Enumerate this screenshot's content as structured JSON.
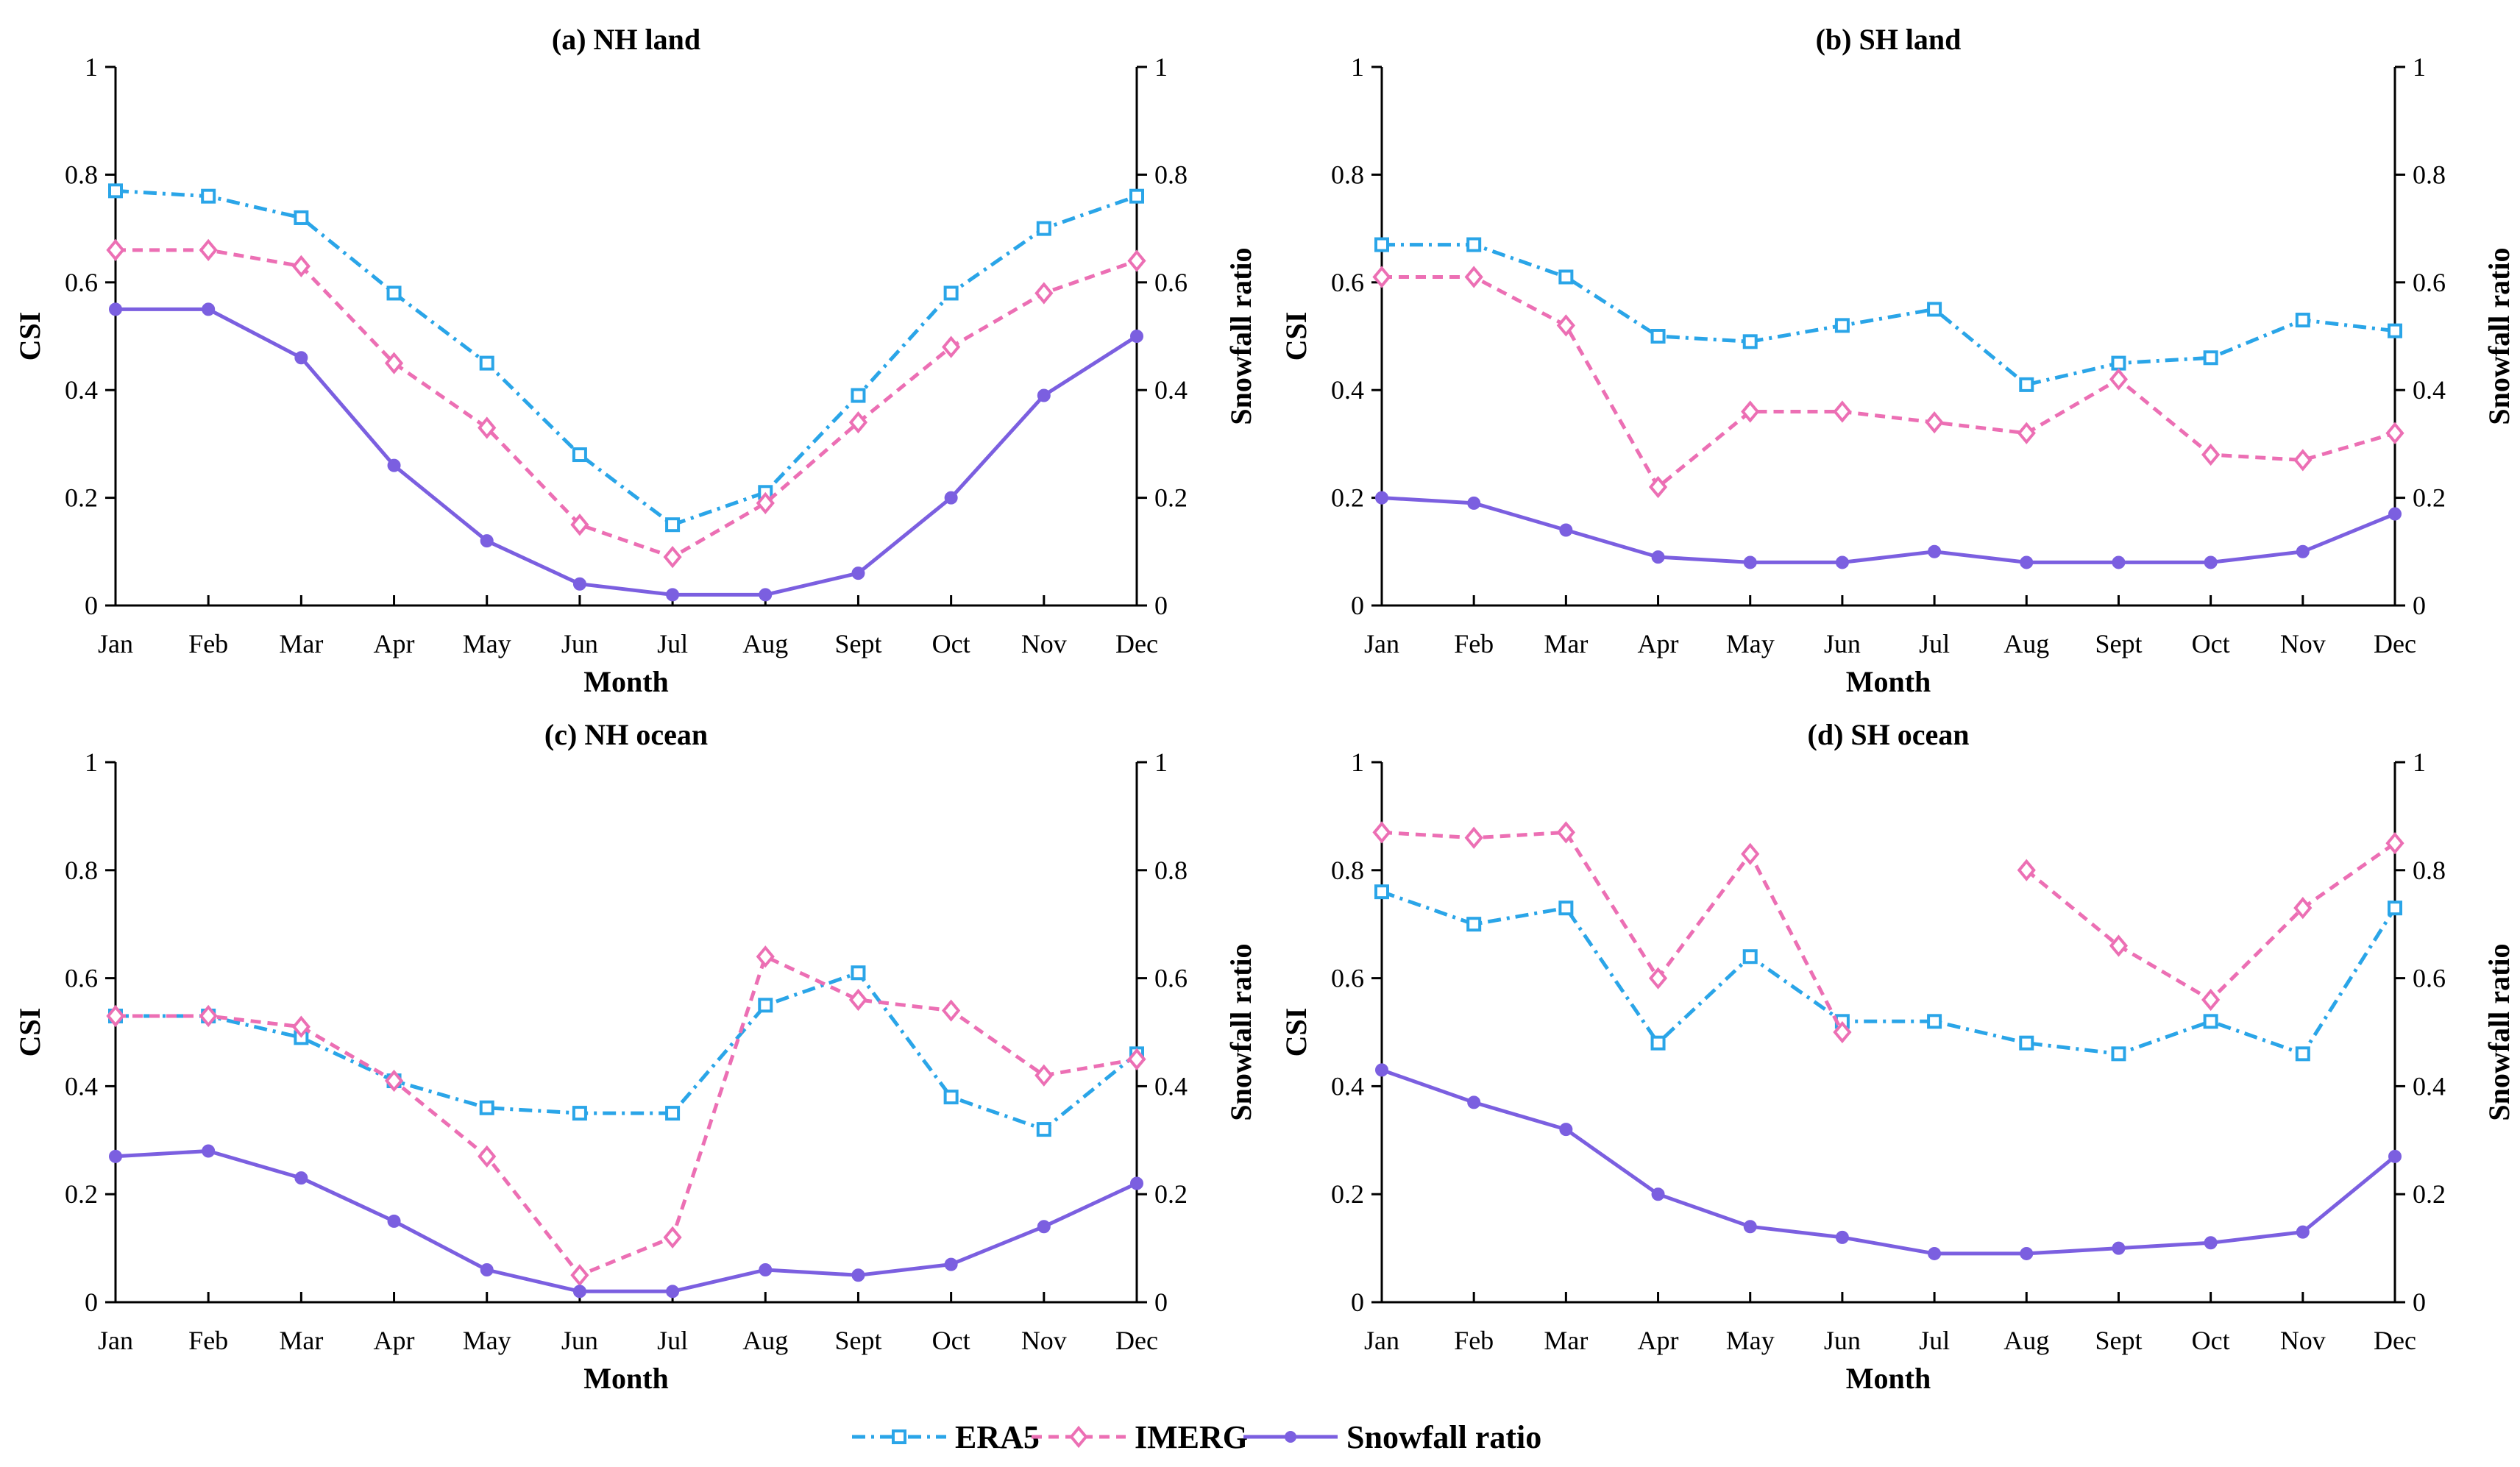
{
  "colors": {
    "era5": "#2aa5e8",
    "imerg": "#ec6fb4",
    "snowfall": "#7b5fe0"
  },
  "legend": {
    "era5": "ERA5",
    "imerg": "IMERG",
    "snowfall": "Snowfall ratio"
  },
  "chart_data": [
    {
      "type": "line",
      "title": "(a) NH land",
      "xlabel": "Month",
      "ylabel": "CSI",
      "y2label": "Snowfall ratio",
      "categories": [
        "Jan",
        "Feb",
        "Mar",
        "Apr",
        "May",
        "Jun",
        "Jul",
        "Aug",
        "Sept",
        "Oct",
        "Nov",
        "Dec"
      ],
      "ylim": [
        0,
        1
      ],
      "y2lim": [
        0,
        1
      ],
      "yticks": [
        "0",
        "0.2",
        "0.4",
        "0.6",
        "0.8",
        "1"
      ],
      "y2ticks": [
        "0",
        "0.2",
        "0.4",
        "0.6",
        "0.8",
        "1"
      ],
      "series": [
        {
          "name": "ERA5",
          "key": "era5",
          "axis": "left",
          "values": [
            0.77,
            0.76,
            0.72,
            0.58,
            0.45,
            0.28,
            0.15,
            0.21,
            0.39,
            0.58,
            0.7,
            0.76
          ]
        },
        {
          "name": "IMERG",
          "key": "imerg",
          "axis": "left",
          "values": [
            0.66,
            0.66,
            0.63,
            0.45,
            0.33,
            0.15,
            0.09,
            0.19,
            0.34,
            0.48,
            0.58,
            0.64
          ]
        },
        {
          "name": "Snowfall ratio",
          "key": "snowfall",
          "axis": "right",
          "values": [
            0.55,
            0.55,
            0.46,
            0.26,
            0.12,
            0.04,
            0.02,
            0.02,
            0.06,
            0.2,
            0.39,
            0.5
          ]
        }
      ]
    },
    {
      "type": "line",
      "title": "(b) SH land",
      "xlabel": "Month",
      "ylabel": "CSI",
      "y2label": "Snowfall ratio",
      "categories": [
        "Jan",
        "Feb",
        "Mar",
        "Apr",
        "May",
        "Jun",
        "Jul",
        "Aug",
        "Sept",
        "Oct",
        "Nov",
        "Dec"
      ],
      "ylim": [
        0,
        1
      ],
      "y2lim": [
        0,
        1
      ],
      "yticks": [
        "0",
        "0.2",
        "0.4",
        "0.6",
        "0.8",
        "1"
      ],
      "y2ticks": [
        "0",
        "0.2",
        "0.4",
        "0.6",
        "0.8",
        "1"
      ],
      "series": [
        {
          "name": "ERA5",
          "key": "era5",
          "axis": "left",
          "values": [
            0.67,
            0.67,
            0.61,
            0.5,
            0.49,
            0.52,
            0.55,
            0.41,
            0.45,
            0.46,
            0.53,
            0.51
          ]
        },
        {
          "name": "IMERG",
          "key": "imerg",
          "axis": "left",
          "values": [
            0.61,
            0.61,
            0.52,
            0.22,
            0.36,
            0.36,
            0.34,
            0.32,
            0.42,
            0.28,
            0.27,
            0.32
          ]
        },
        {
          "name": "Snowfall ratio",
          "key": "snowfall",
          "axis": "right",
          "values": [
            0.2,
            0.19,
            0.14,
            0.09,
            0.08,
            0.08,
            0.1,
            0.08,
            0.08,
            0.08,
            0.1,
            0.17
          ]
        }
      ]
    },
    {
      "type": "line",
      "title": "(c) NH ocean",
      "xlabel": "Month",
      "ylabel": "CSI",
      "y2label": "Snowfall ratio",
      "categories": [
        "Jan",
        "Feb",
        "Mar",
        "Apr",
        "May",
        "Jun",
        "Jul",
        "Aug",
        "Sept",
        "Oct",
        "Nov",
        "Dec"
      ],
      "ylim": [
        0,
        1
      ],
      "y2lim": [
        0,
        1
      ],
      "yticks": [
        "0",
        "0.2",
        "0.4",
        "0.6",
        "0.8",
        "1"
      ],
      "y2ticks": [
        "0",
        "0.2",
        "0.4",
        "0.6",
        "0.8",
        "1"
      ],
      "series": [
        {
          "name": "ERA5",
          "key": "era5",
          "axis": "left",
          "values": [
            0.53,
            0.53,
            0.49,
            0.41,
            0.36,
            0.35,
            0.35,
            0.55,
            0.61,
            0.38,
            0.32,
            0.46
          ]
        },
        {
          "name": "IMERG",
          "key": "imerg",
          "axis": "left",
          "values": [
            0.53,
            0.53,
            0.51,
            0.41,
            0.27,
            0.05,
            0.12,
            0.64,
            0.56,
            0.54,
            0.42,
            0.45
          ]
        },
        {
          "name": "Snowfall ratio",
          "key": "snowfall",
          "axis": "right",
          "values": [
            0.27,
            0.28,
            0.23,
            0.15,
            0.06,
            0.02,
            0.02,
            0.06,
            0.05,
            0.07,
            0.14,
            0.22
          ]
        }
      ]
    },
    {
      "type": "line",
      "title": "(d) SH ocean",
      "xlabel": "Month",
      "ylabel": "CSI",
      "y2label": "Snowfall ratio",
      "categories": [
        "Jan",
        "Feb",
        "Mar",
        "Apr",
        "May",
        "Jun",
        "Jul",
        "Aug",
        "Sept",
        "Oct",
        "Nov",
        "Dec"
      ],
      "ylim": [
        0,
        1
      ],
      "y2lim": [
        0,
        1
      ],
      "yticks": [
        "0",
        "0.2",
        "0.4",
        "0.6",
        "0.8",
        "1"
      ],
      "y2ticks": [
        "0",
        "0.2",
        "0.4",
        "0.6",
        "0.8",
        "1"
      ],
      "series": [
        {
          "name": "ERA5",
          "key": "era5",
          "axis": "left",
          "values": [
            0.76,
            0.7,
            0.73,
            0.48,
            0.64,
            0.52,
            0.52,
            0.48,
            0.46,
            0.52,
            0.46,
            0.73
          ]
        },
        {
          "name": "IMERG",
          "key": "imerg",
          "axis": "left",
          "values": [
            0.87,
            0.86,
            0.87,
            0.6,
            0.83,
            0.5,
            null,
            0.8,
            0.66,
            0.56,
            0.73,
            0.85
          ]
        },
        {
          "name": "Snowfall ratio",
          "key": "snowfall",
          "axis": "right",
          "values": [
            0.43,
            0.37,
            0.32,
            0.2,
            0.14,
            0.12,
            0.09,
            0.09,
            0.1,
            0.11,
            0.13,
            0.27
          ]
        }
      ]
    }
  ]
}
